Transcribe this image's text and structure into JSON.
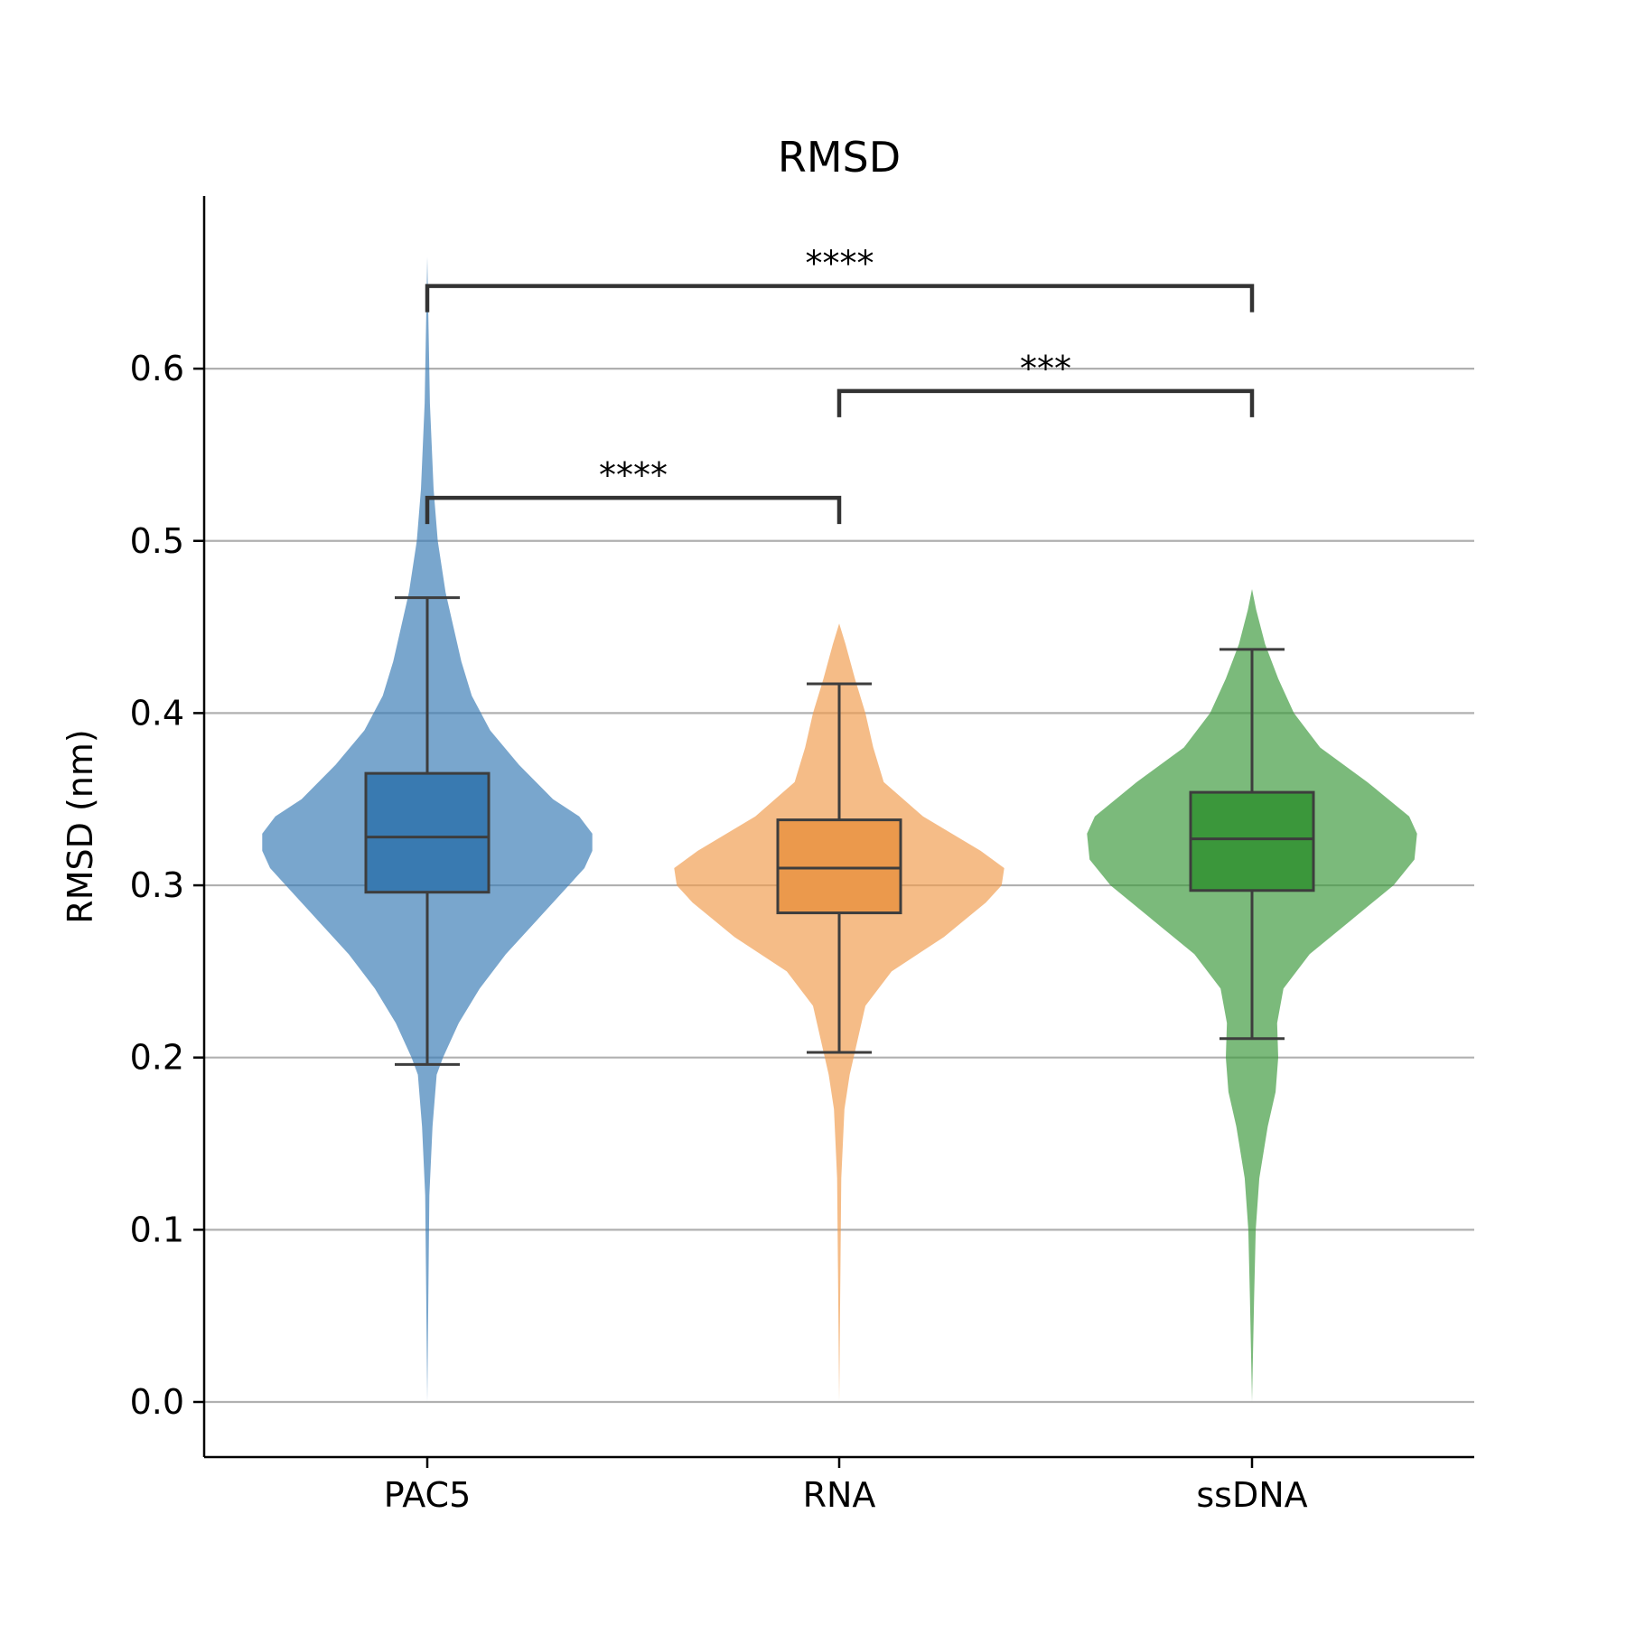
{
  "chart_data": {
    "type": "violin",
    "title": "RMSD",
    "xlabel": "",
    "ylabel": "RMSD (nm)",
    "ylim": [
      -0.032,
      0.7
    ],
    "yticks": [
      "0.0",
      "0.1",
      "0.2",
      "0.3",
      "0.4",
      "0.5",
      "0.6"
    ],
    "ytick_values": [
      0.0,
      0.1,
      0.2,
      0.3,
      0.4,
      0.5,
      0.6
    ],
    "grid": "horizontal",
    "categories": [
      "PAC5",
      "RNA",
      "ssDNA"
    ],
    "series": [
      {
        "color": "#3a7cb5",
        "box": {
          "whisker_low": 0.196,
          "q1": 0.296,
          "median": 0.328,
          "q3": 0.365,
          "whisker_high": 0.467
        },
        "violin_range": [
          0.0,
          0.665
        ],
        "violin_profile": [
          [
            0.0,
            0.0
          ],
          [
            0.12,
            0.004
          ],
          [
            0.16,
            0.01
          ],
          [
            0.19,
            0.018
          ],
          [
            0.2,
            0.03
          ],
          [
            0.22,
            0.06
          ],
          [
            0.24,
            0.1
          ],
          [
            0.26,
            0.15
          ],
          [
            0.28,
            0.21
          ],
          [
            0.3,
            0.27
          ],
          [
            0.31,
            0.3
          ],
          [
            0.32,
            0.315
          ],
          [
            0.33,
            0.315
          ],
          [
            0.34,
            0.29
          ],
          [
            0.35,
            0.24
          ],
          [
            0.37,
            0.175
          ],
          [
            0.39,
            0.12
          ],
          [
            0.41,
            0.085
          ],
          [
            0.43,
            0.065
          ],
          [
            0.45,
            0.05
          ],
          [
            0.47,
            0.035
          ],
          [
            0.5,
            0.02
          ],
          [
            0.53,
            0.012
          ],
          [
            0.58,
            0.005
          ],
          [
            0.665,
            0.0
          ]
        ]
      },
      {
        "color": "#f09c4e",
        "box": {
          "whisker_low": 0.203,
          "q1": 0.284,
          "median": 0.31,
          "q3": 0.338,
          "whisker_high": 0.417
        },
        "violin_range": [
          0.0,
          0.452
        ],
        "violin_profile": [
          [
            0.0,
            0.0
          ],
          [
            0.13,
            0.004
          ],
          [
            0.17,
            0.01
          ],
          [
            0.19,
            0.02
          ],
          [
            0.21,
            0.035
          ],
          [
            0.23,
            0.05
          ],
          [
            0.25,
            0.1
          ],
          [
            0.27,
            0.2
          ],
          [
            0.29,
            0.28
          ],
          [
            0.3,
            0.31
          ],
          [
            0.31,
            0.315
          ],
          [
            0.32,
            0.27
          ],
          [
            0.34,
            0.16
          ],
          [
            0.36,
            0.085
          ],
          [
            0.38,
            0.065
          ],
          [
            0.4,
            0.05
          ],
          [
            0.42,
            0.03
          ],
          [
            0.44,
            0.012
          ],
          [
            0.452,
            0.0
          ]
        ]
      },
      {
        "color": "#3c9a3c",
        "box": {
          "whisker_low": 0.211,
          "q1": 0.297,
          "median": 0.327,
          "q3": 0.354,
          "whisker_high": 0.437
        },
        "violin_range": [
          0.0,
          0.472
        ],
        "violin_profile": [
          [
            0.0,
            0.0
          ],
          [
            0.06,
            0.004
          ],
          [
            0.1,
            0.007
          ],
          [
            0.13,
            0.014
          ],
          [
            0.16,
            0.03
          ],
          [
            0.18,
            0.045
          ],
          [
            0.2,
            0.05
          ],
          [
            0.22,
            0.048
          ],
          [
            0.24,
            0.06
          ],
          [
            0.26,
            0.11
          ],
          [
            0.28,
            0.19
          ],
          [
            0.3,
            0.27
          ],
          [
            0.315,
            0.31
          ],
          [
            0.33,
            0.315
          ],
          [
            0.34,
            0.3
          ],
          [
            0.36,
            0.22
          ],
          [
            0.38,
            0.13
          ],
          [
            0.4,
            0.08
          ],
          [
            0.42,
            0.05
          ],
          [
            0.44,
            0.025
          ],
          [
            0.46,
            0.008
          ],
          [
            0.472,
            0.0
          ]
        ]
      }
    ],
    "significance": [
      {
        "from": 0,
        "to": 1,
        "label": "****",
        "level": 0.525
      },
      {
        "from": 1,
        "to": 2,
        "label": "***",
        "level": 0.587
      },
      {
        "from": 0,
        "to": 2,
        "label": "****",
        "level": 0.648
      }
    ]
  }
}
